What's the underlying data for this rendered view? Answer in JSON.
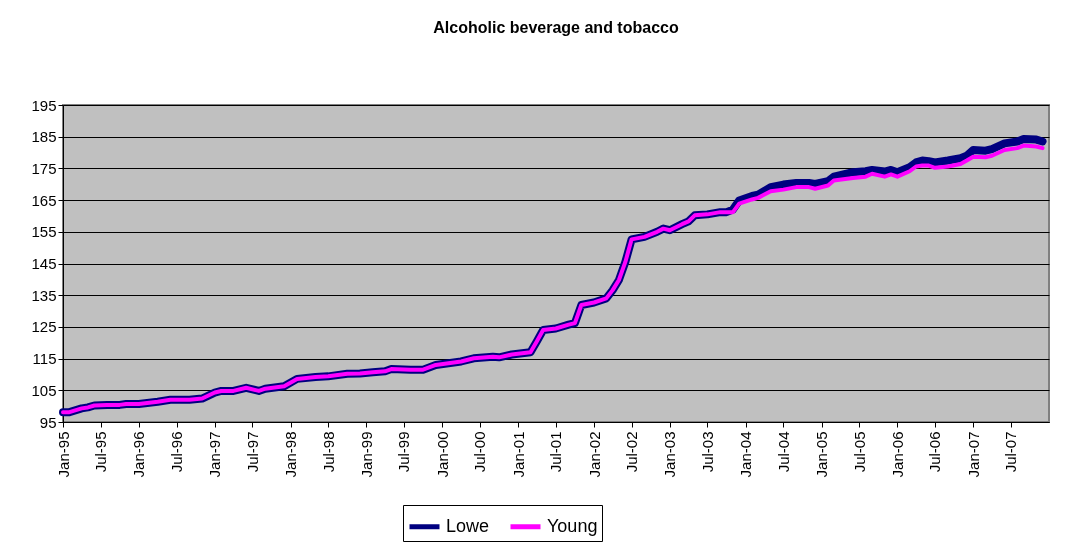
{
  "chart_data": {
    "type": "line",
    "title": "Alcoholic beverage and tobacco",
    "x": [
      "1995-01",
      "1995-02",
      "1995-04",
      "1995-05",
      "1995-06",
      "1995-08",
      "1995-10",
      "1995-11",
      "1996-01",
      "1996-04",
      "1996-06",
      "1996-09",
      "1996-11",
      "1997-01",
      "1997-02",
      "1997-04",
      "1997-06",
      "1997-08",
      "1997-09",
      "1997-12",
      "1998-02",
      "1998-05",
      "1998-07",
      "1998-10",
      "1998-12",
      "1999-02",
      "1999-04",
      "1999-05",
      "1999-08",
      "1999-10",
      "1999-12",
      "2000-04",
      "2000-06",
      "2000-09",
      "2000-10",
      "2000-12",
      "2001-03",
      "2001-04",
      "2001-05",
      "2001-07",
      "2001-09",
      "2001-10",
      "2001-11",
      "2002-01",
      "2002-03",
      "2002-04",
      "2002-05",
      "2002-06",
      "2002-07",
      "2002-09",
      "2002-11",
      "2002-12",
      "2003-01",
      "2003-03",
      "2003-04",
      "2003-05",
      "2003-07",
      "2003-09",
      "2003-10",
      "2003-11",
      "2003-12",
      "2004-02",
      "2004-03",
      "2004-05",
      "2004-07",
      "2004-09",
      "2004-11",
      "2004-12",
      "2005-02",
      "2005-03",
      "2005-06",
      "2005-08",
      "2005-09",
      "2005-11",
      "2005-12",
      "2006-01",
      "2006-03",
      "2006-04",
      "2006-05",
      "2006-06",
      "2006-07",
      "2006-09",
      "2006-11",
      "2006-12",
      "2007-01",
      "2007-03",
      "2007-04",
      "2007-06",
      "2007-08",
      "2007-09",
      "2007-11",
      "2007-12"
    ],
    "series": [
      {
        "name": "Lowe",
        "color": "#000080",
        "values": [
          98.1,
          98.1,
          99.3,
          99.6,
          100.2,
          100.4,
          100.4,
          100.7,
          100.7,
          101.4,
          102,
          102,
          102.4,
          104.3,
          104.8,
          104.8,
          105.8,
          104.8,
          105.5,
          106.3,
          108.6,
          109.2,
          109.4,
          110.2,
          110.3,
          110.7,
          111,
          111.7,
          111.5,
          111.5,
          113,
          114.1,
          115.1,
          115.6,
          115.4,
          116.3,
          117,
          120.5,
          124,
          124.5,
          125.7,
          126.2,
          131.9,
          132.7,
          134,
          136.6,
          139.8,
          145.5,
          152.6,
          153.4,
          155,
          156,
          155.5,
          157.4,
          158.3,
          160.2,
          160.5,
          161.2,
          161.2,
          162,
          164.9,
          166.3,
          166.7,
          169.1,
          169.9,
          170.4,
          170.4,
          170.1,
          171,
          172.4,
          173.8,
          174.1,
          174.5,
          174,
          174.5,
          173.8,
          175.4,
          176.9,
          177.5,
          177.3,
          176.9,
          177.5,
          178.2,
          179,
          180.8,
          180.6,
          181.1,
          182.9,
          183.5,
          184.3,
          184.1,
          183.5
        ]
      },
      {
        "name": "Young",
        "color": "#ff00ff",
        "values": [
          98.1,
          98.1,
          99.3,
          99.6,
          100.2,
          100.4,
          100.4,
          100.7,
          100.7,
          101.4,
          102,
          102,
          102.4,
          104.3,
          104.8,
          104.8,
          105.8,
          104.8,
          105.5,
          106.3,
          108.6,
          109.2,
          109.4,
          110.2,
          110.3,
          110.7,
          111,
          111.7,
          111.5,
          111.5,
          113,
          114.1,
          115.1,
          115.6,
          115.4,
          116.3,
          117,
          120.5,
          124,
          124.5,
          125.7,
          126.2,
          131.9,
          132.7,
          134,
          136.6,
          139.8,
          145.5,
          152.6,
          153.4,
          155,
          156,
          155.5,
          157.4,
          158.3,
          160.2,
          160.5,
          161.2,
          161.2,
          161.2,
          163.9,
          165.2,
          165.7,
          167.8,
          168.3,
          169.1,
          169.1,
          168.6,
          169.6,
          171.2,
          172,
          172.4,
          173.3,
          172.4,
          173.1,
          172.4,
          174.1,
          175.6,
          175.9,
          175.9,
          175.2,
          175.6,
          176.4,
          177.5,
          178.7,
          178.5,
          179,
          180.8,
          181.4,
          182.2,
          181.9,
          181.4
        ]
      }
    ],
    "xlim": [
      "1995-01",
      "2008-01"
    ],
    "xticks": [
      {
        "value": "1995-01",
        "label": "Jan-95"
      },
      {
        "value": "1995-07",
        "label": "Jul-95"
      },
      {
        "value": "1996-01",
        "label": "Jan-96"
      },
      {
        "value": "1996-07",
        "label": "Jul-96"
      },
      {
        "value": "1997-01",
        "label": "Jan-97"
      },
      {
        "value": "1997-07",
        "label": "Jul-97"
      },
      {
        "value": "1998-01",
        "label": "Jan-98"
      },
      {
        "value": "1998-07",
        "label": "Jul-98"
      },
      {
        "value": "1999-01",
        "label": "Jan-99"
      },
      {
        "value": "1999-07",
        "label": "Jul-99"
      },
      {
        "value": "2000-01",
        "label": "Jan-00"
      },
      {
        "value": "2000-07",
        "label": "Jul-00"
      },
      {
        "value": "2001-01",
        "label": "Jan-01"
      },
      {
        "value": "2001-07",
        "label": "Jul-01"
      },
      {
        "value": "2002-01",
        "label": "Jan-02"
      },
      {
        "value": "2002-07",
        "label": "Jul-02"
      },
      {
        "value": "2003-01",
        "label": "Jan-03"
      },
      {
        "value": "2003-07",
        "label": "Jul-03"
      },
      {
        "value": "2004-01",
        "label": "Jan-04"
      },
      {
        "value": "2004-07",
        "label": "Jul-04"
      },
      {
        "value": "2005-01",
        "label": "Jan-05"
      },
      {
        "value": "2005-07",
        "label": "Jul-05"
      },
      {
        "value": "2006-01",
        "label": "Jan-06"
      },
      {
        "value": "2006-07",
        "label": "Jul-06"
      },
      {
        "value": "2007-01",
        "label": "Jan-07"
      },
      {
        "value": "2007-07",
        "label": "Jul-07"
      }
    ],
    "ylim": [
      95,
      195
    ],
    "yticks": [
      95,
      105,
      115,
      125,
      135,
      145,
      155,
      165,
      175,
      185,
      195
    ],
    "grid": "y",
    "legend": "bottom"
  }
}
